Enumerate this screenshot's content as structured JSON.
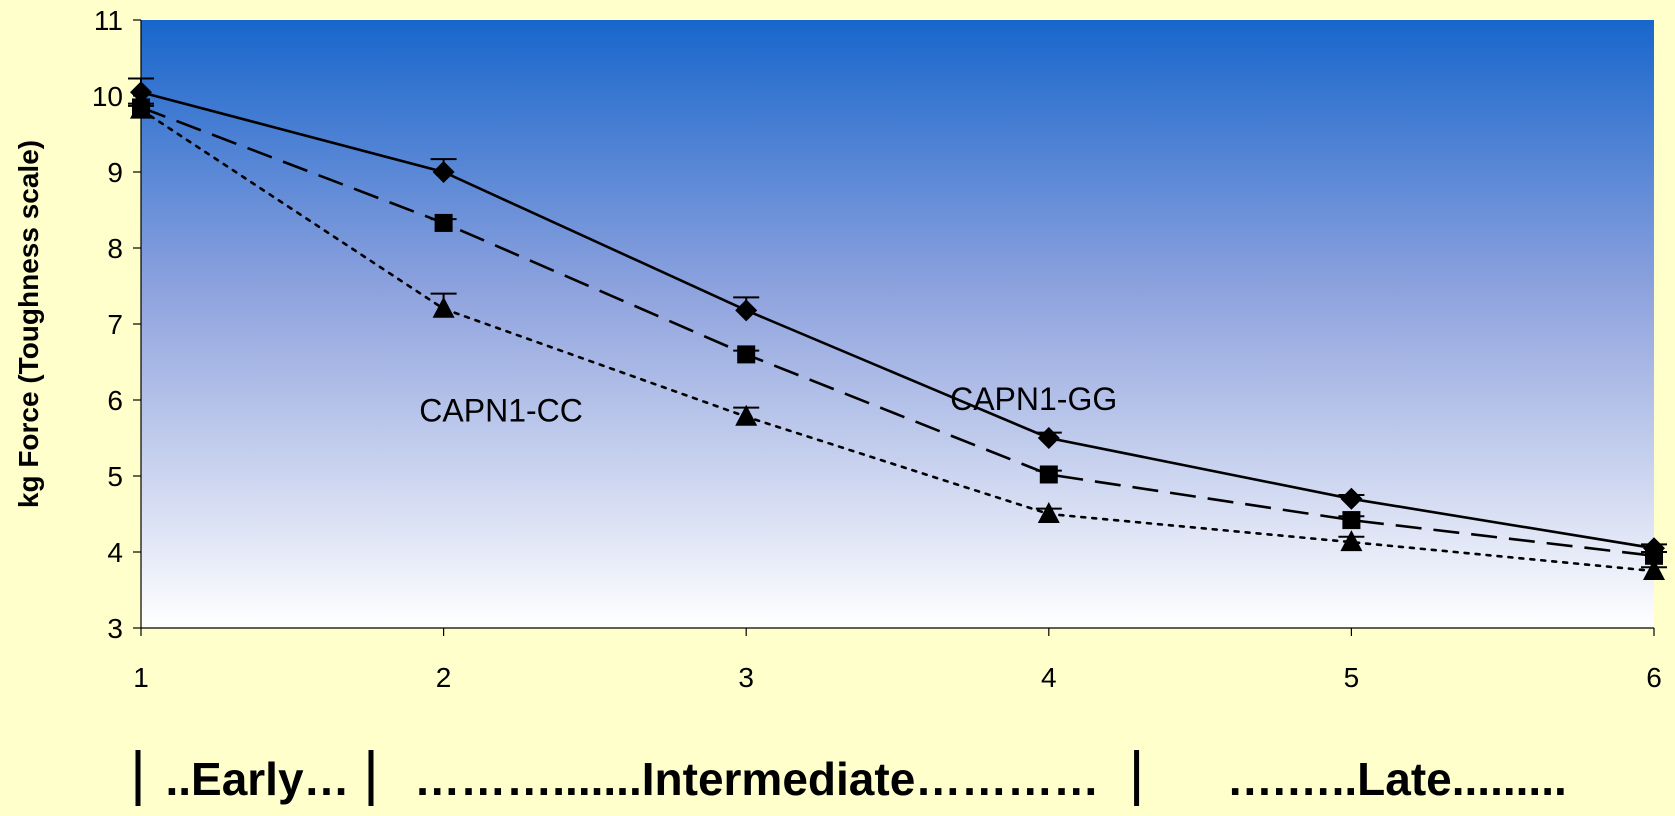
{
  "chart_data": {
    "type": "line",
    "ylabel": "kg Force (Toughness scale)",
    "xlabel": "",
    "ylim": [
      3,
      11
    ],
    "xlim": [
      1,
      6
    ],
    "x": [
      1,
      2,
      3,
      4,
      5,
      6
    ],
    "x_ticks": [
      "1",
      "2",
      "3",
      "4",
      "5",
      "6"
    ],
    "y_ticks": [
      "3",
      "4",
      "5",
      "6",
      "7",
      "8",
      "9",
      "10",
      "11"
    ],
    "grid": false,
    "plot_background": {
      "top": "#1866cc",
      "bottom": "#ffffff"
    },
    "series": [
      {
        "marker": "diamond",
        "line": "solid",
        "values": [
          10.05,
          9.0,
          7.18,
          5.5,
          4.7,
          4.05
        ],
        "err": [
          0.18,
          0.17,
          0.17,
          0.07,
          0.05,
          0.05
        ]
      },
      {
        "marker": "square",
        "line": "dashed",
        "values": [
          9.85,
          8.33,
          6.6,
          5.02,
          4.42,
          3.95
        ],
        "err": [
          0.05,
          0.05,
          0.05,
          0.05,
          0.05,
          0.05
        ]
      },
      {
        "marker": "triangle",
        "line": "dotted",
        "values": [
          9.82,
          7.2,
          5.78,
          4.5,
          4.13,
          3.75
        ],
        "err": [
          0.05,
          0.2,
          0.12,
          0.07,
          0.07,
          0.05
        ]
      }
    ],
    "annotations": [
      {
        "text": "CAPN1-GG",
        "x": 3.95,
        "y": 6.0
      },
      {
        "text": "CAPN1-CC",
        "x": 2.19,
        "y": 5.85
      }
    ],
    "stage_labels": [
      {
        "text": "..Early…",
        "x_from": 1.0,
        "x_to": 1.77
      },
      {
        "text": "……….......Intermediate…………",
        "x_from": 1.77,
        "x_to": 4.3
      },
      {
        "text": "….…..Late.........",
        "x_from": 4.3,
        "x_to": 6.0
      }
    ]
  }
}
